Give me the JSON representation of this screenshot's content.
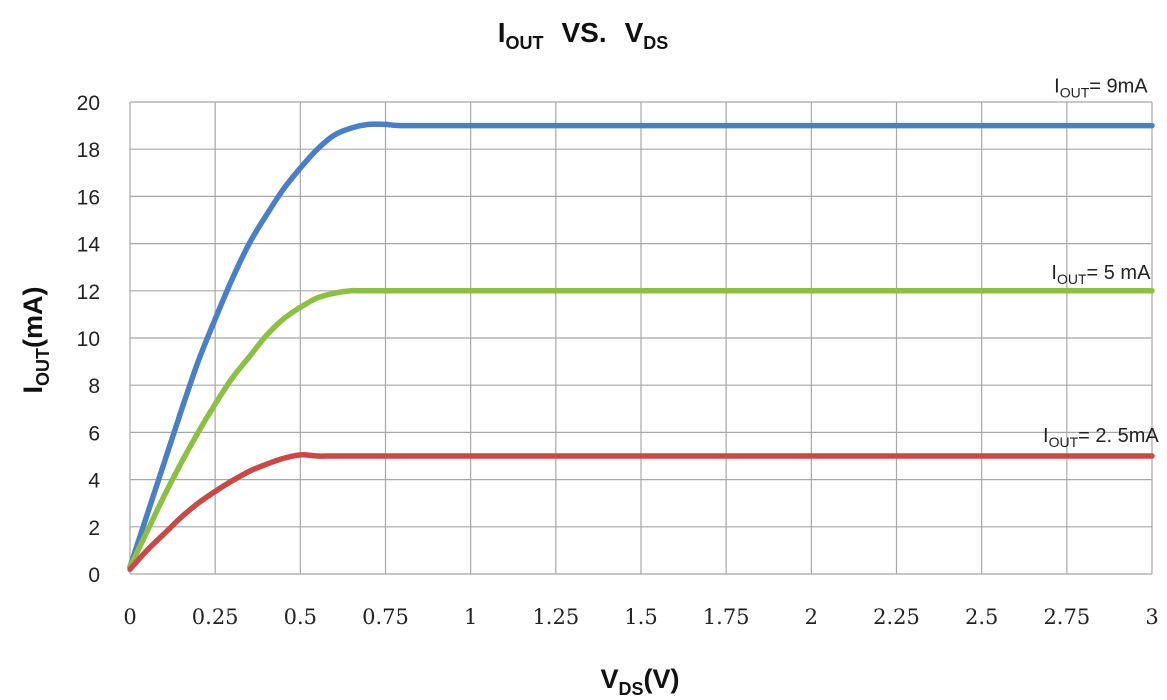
{
  "chart_data": {
    "type": "line",
    "title": {
      "main": "I",
      "sub": "OUT",
      "middle": "VS.",
      "main2": "V",
      "sub2": "DS"
    },
    "xlabel": {
      "main": "V",
      "sub": "DS",
      "tail": "(V)"
    },
    "ylabel": {
      "main": "I",
      "sub": "OUT",
      "tail": "(mA)"
    },
    "xlim": [
      0,
      3
    ],
    "ylim": [
      0,
      20
    ],
    "x_ticks": [
      "0",
      "0.25",
      "0.5",
      "0.75",
      "1",
      "1.25",
      "1.5",
      "1.75",
      "2",
      "2.25",
      "2.5",
      "2.75",
      "3"
    ],
    "y_ticks": [
      "0",
      "2",
      "4",
      "6",
      "8",
      "10",
      "12",
      "14",
      "16",
      "18",
      "20"
    ],
    "grid": true,
    "series": [
      {
        "color": "#4a7ec7",
        "x": [
          0,
          0.05,
          0.1,
          0.15,
          0.2,
          0.25,
          0.3,
          0.35,
          0.4,
          0.45,
          0.5,
          0.55,
          0.6,
          0.65,
          0.7,
          0.75,
          0.8,
          1,
          1.5,
          2,
          2.5,
          3
        ],
        "y": [
          0.3,
          2.5,
          4.7,
          6.9,
          9.0,
          10.8,
          12.5,
          14.0,
          15.2,
          16.3,
          17.2,
          18.0,
          18.6,
          18.9,
          19.05,
          19.05,
          19.0,
          19.0,
          19.0,
          19.0,
          19.0,
          19.0
        ]
      },
      {
        "color": "#8dbf45",
        "x": [
          0,
          0.05,
          0.1,
          0.15,
          0.2,
          0.25,
          0.3,
          0.35,
          0.4,
          0.45,
          0.5,
          0.55,
          0.6,
          0.65,
          0.7,
          1,
          1.5,
          2,
          2.5,
          3
        ],
        "y": [
          0.3,
          1.8,
          3.3,
          4.7,
          6.0,
          7.2,
          8.3,
          9.2,
          10.1,
          10.8,
          11.3,
          11.7,
          11.9,
          12.0,
          12.0,
          12.0,
          12.0,
          12.0,
          12.0,
          12.0
        ]
      },
      {
        "color": "#c84a48",
        "x": [
          0,
          0.05,
          0.1,
          0.15,
          0.2,
          0.25,
          0.3,
          0.35,
          0.4,
          0.45,
          0.5,
          0.55,
          0.6,
          0.7,
          1,
          1.5,
          2,
          2.5,
          3
        ],
        "y": [
          0.2,
          1.0,
          1.7,
          2.4,
          3.0,
          3.5,
          3.95,
          4.35,
          4.65,
          4.9,
          5.05,
          5.0,
          5.0,
          5.0,
          5.0,
          5.0,
          5.0,
          5.0,
          5.0
        ]
      }
    ],
    "annotations": [
      {
        "main": "I",
        "sub": "OUT",
        "text": "=  9mA",
        "x": 2.85,
        "y": 20.4
      },
      {
        "main": "I",
        "sub": "OUT",
        "text": "= 5 mA",
        "x": 2.85,
        "y": 12.5
      },
      {
        "main": "I",
        "sub": "OUT",
        "text": "= 2. 5mA",
        "x": 2.85,
        "y": 5.6
      }
    ]
  }
}
